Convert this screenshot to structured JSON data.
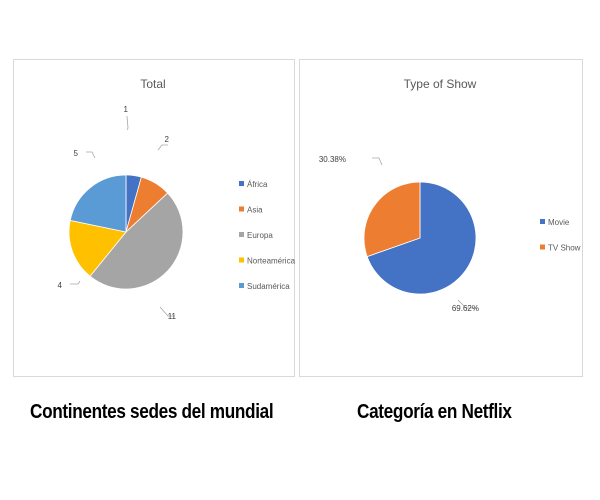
{
  "chart_data": [
    {
      "type": "pie",
      "title": "Total",
      "categories": [
        "África",
        "Asia",
        "Europa",
        "Norteamérica",
        "Sudamérica"
      ],
      "values": [
        1,
        2,
        11,
        4,
        5
      ],
      "data_labels": [
        "1",
        "2",
        "11",
        "4",
        "5"
      ],
      "colors": [
        "#4472C4",
        "#ED7D31",
        "#A5A5A5",
        "#FFC000",
        "#5B9BD5"
      ],
      "legend": "right"
    },
    {
      "type": "pie",
      "title": "Type of Show",
      "categories": [
        "Movie",
        "TV Show"
      ],
      "values": [
        69.62,
        30.38
      ],
      "data_labels": [
        "69.62%",
        "30.38%"
      ],
      "colors": [
        "#4472C4",
        "#ED7D31"
      ],
      "legend": "right"
    }
  ],
  "captions": {
    "left": "Continentes sedes del mundial",
    "right": "Categoría en Netflix"
  }
}
